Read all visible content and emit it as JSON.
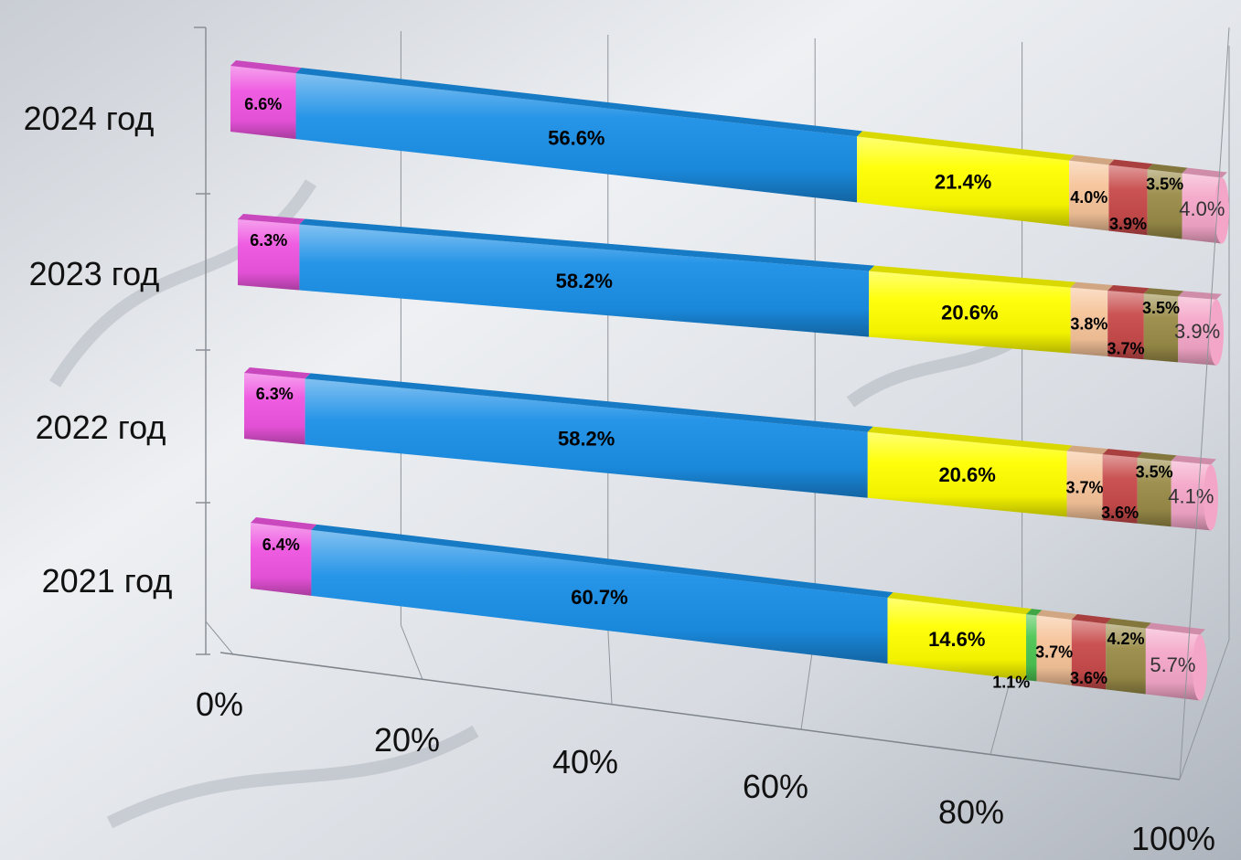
{
  "chart_data": {
    "type": "bar",
    "stacked": true,
    "orientation": "horizontal",
    "percent_stacked": true,
    "grid": true,
    "legend": "none",
    "categories": [
      "2024 год",
      "2023 год",
      "2022 год",
      "2021 год"
    ],
    "xlim": [
      0,
      100
    ],
    "x_ticks": [
      "0%",
      "20%",
      "40%",
      "60%",
      "80%",
      "100%"
    ],
    "series": [
      {
        "color": "#ee55e0",
        "values": [
          6.6,
          6.3,
          6.3,
          6.4
        ],
        "labels": [
          "6.6%",
          "6.3%",
          "6.3%",
          "6.4%"
        ],
        "label_color": "#000000",
        "label_weight": "bold",
        "label_pos": "center"
      },
      {
        "color": "#1b8fe6",
        "values": [
          56.6,
          58.2,
          58.2,
          60.7
        ],
        "labels": [
          "56.6%",
          "58.2%",
          "58.2%",
          "60.7%"
        ],
        "label_color": "#000000",
        "label_weight": "bold",
        "label_pos": "center"
      },
      {
        "color": "#ffff00",
        "values": [
          21.4,
          20.6,
          20.6,
          14.6
        ],
        "labels": [
          "21.4%",
          "20.6%",
          "20.6%",
          "14.6%"
        ],
        "label_color": "#000000",
        "label_weight": "bold",
        "label_pos": "center"
      },
      {
        "color": "#4cc552",
        "values": [
          0,
          0,
          0,
          1.1
        ],
        "labels": [
          "",
          "",
          "",
          "1.1%"
        ],
        "label_color": "#000000",
        "label_weight": "bold",
        "label_pos": "below-left"
      },
      {
        "color": "#f6c49a",
        "values": [
          4.0,
          3.8,
          3.7,
          3.7
        ],
        "labels": [
          "4.0%",
          "3.8%",
          "3.7%",
          "3.7%"
        ],
        "label_color": "#000000",
        "label_weight": "bold",
        "label_pos": "center"
      },
      {
        "color": "#c84a4a",
        "values": [
          3.9,
          3.7,
          3.6,
          3.6
        ],
        "labels": [
          "3.9%",
          "3.7%",
          "3.6%",
          "3.6%"
        ],
        "label_color": "#000000",
        "label_weight": "bold",
        "label_pos": "below"
      },
      {
        "color": "#9a8c48",
        "values": [
          3.5,
          3.5,
          3.5,
          4.2
        ],
        "labels": [
          "3.5%",
          "3.5%",
          "3.5%",
          "4.2%"
        ],
        "label_color": "#000000",
        "label_weight": "bold",
        "label_pos": "above"
      },
      {
        "color": "#f4a6c8",
        "values": [
          4.0,
          3.9,
          4.1,
          5.7
        ],
        "labels": [
          "4.0%",
          "3.9%",
          "4.1%",
          "5.7%"
        ],
        "label_color": "#333333",
        "label_weight": "normal",
        "label_pos": "center"
      }
    ]
  }
}
